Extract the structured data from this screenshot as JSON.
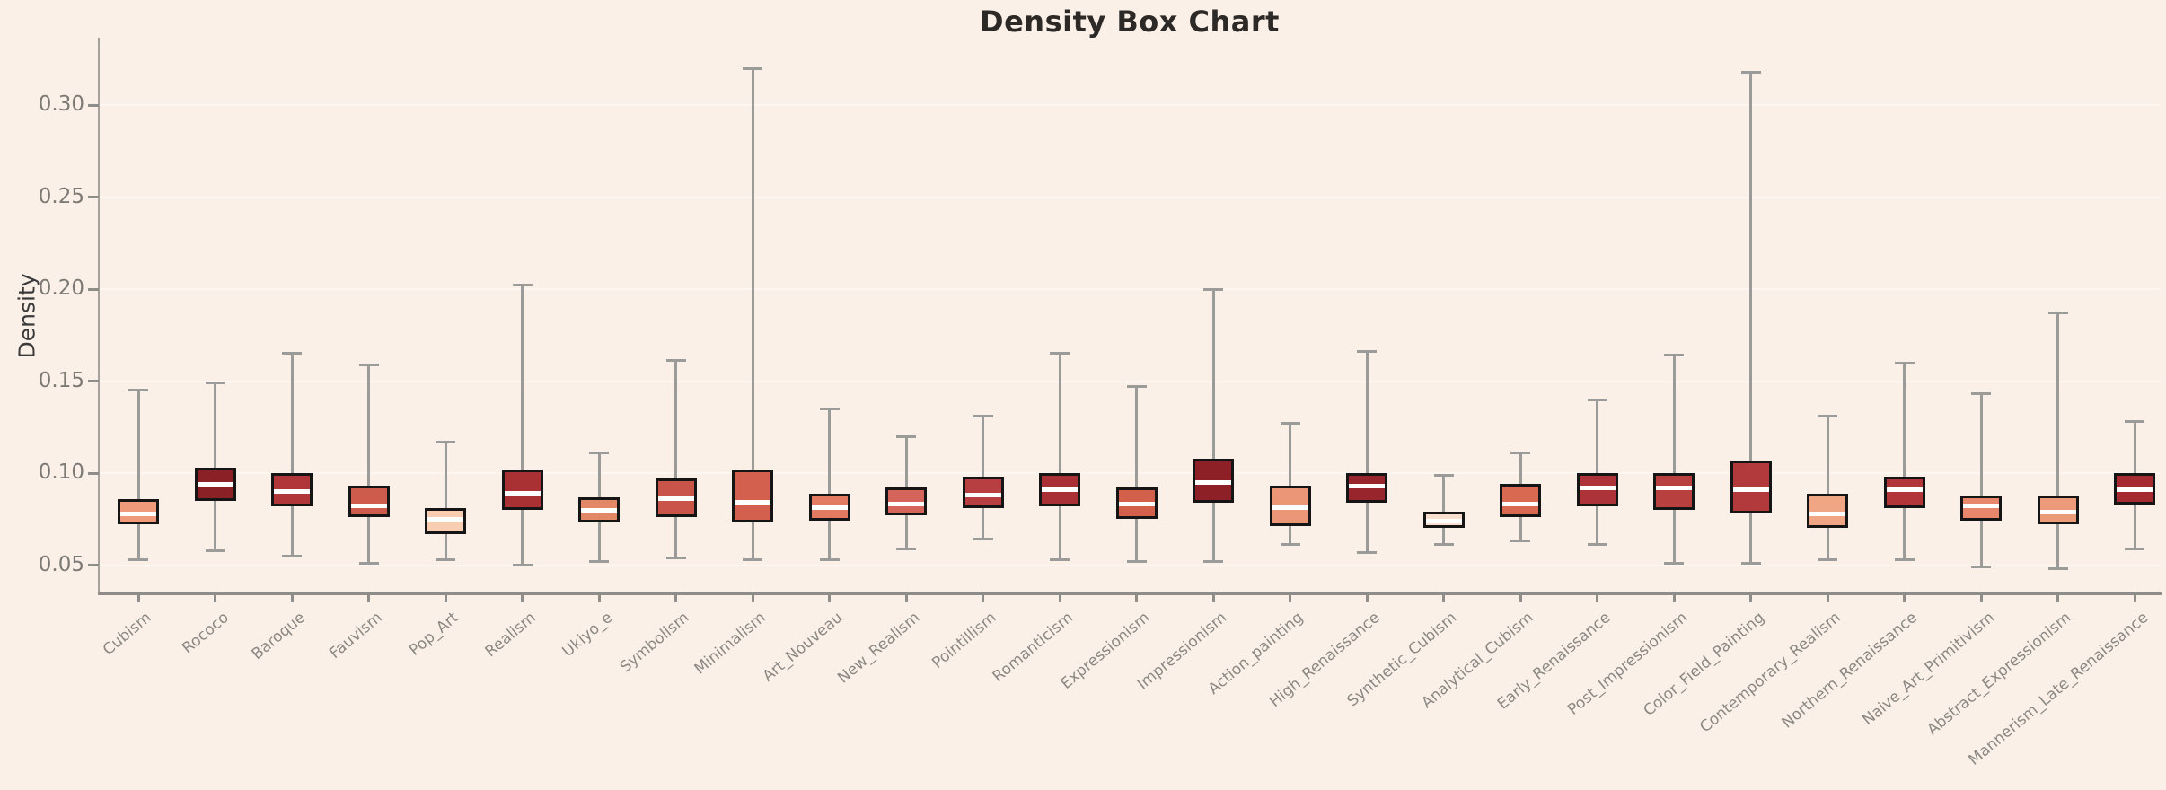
{
  "figure": {
    "title": "Density Box Chart",
    "background": "#FBF0E8"
  },
  "chart_data": {
    "type": "box",
    "title": "Density Box Chart",
    "xlabel": "",
    "ylabel": "Density",
    "ylim": [
      0.034,
      0.336
    ],
    "yticks": [
      0.05,
      0.1,
      0.15,
      0.2,
      0.25,
      0.3
    ],
    "grid": "horizontal",
    "legend": "none",
    "colors": {
      "background": "#FBF0E8",
      "gridline": "#FEF7F1",
      "axis": "#8F8D8A",
      "tick_label": "#8B8884",
      "title_color": "#2D2926",
      "box_border": "#151515",
      "median": "#FFFFFF",
      "whisker": "#9B9B99"
    },
    "categories": [
      "Cubism",
      "Rococo",
      "Baroque",
      "Fauvism",
      "Pop_Art",
      "Realism",
      "Ukiyo_e",
      "Symbolism",
      "Minimalism",
      "Art_Nouveau",
      "New_Realism",
      "Pointillism",
      "Romanticism",
      "Expressionism",
      "Impressionism",
      "Action_painting",
      "High_Renaissance",
      "Synthetic_Cubism",
      "Analytical_Cubism",
      "Early_Renaissance",
      "Post_Impressionism",
      "Color_Field_Painting",
      "Contemporary_Realism",
      "Northern_Renaissance",
      "Naive_Art_Primitivism",
      "Abstract_Expressionism",
      "Mannerism_Late_Renaissance"
    ],
    "series": [
      {
        "name": "Cubism",
        "whisker_low": 0.053,
        "q1": 0.072,
        "median": 0.078,
        "q3": 0.086,
        "whisker_high": 0.145,
        "color": "#EE9A7B"
      },
      {
        "name": "Rococo",
        "whisker_low": 0.058,
        "q1": 0.085,
        "median": 0.094,
        "q3": 0.103,
        "whisker_high": 0.149,
        "color": "#8A2126"
      },
      {
        "name": "Baroque",
        "whisker_low": 0.055,
        "q1": 0.082,
        "median": 0.09,
        "q3": 0.1,
        "whisker_high": 0.165,
        "color": "#B03639"
      },
      {
        "name": "Fauvism",
        "whisker_low": 0.051,
        "q1": 0.076,
        "median": 0.082,
        "q3": 0.093,
        "whisker_high": 0.159,
        "color": "#CE5C4C"
      },
      {
        "name": "Pop_Art",
        "whisker_low": 0.053,
        "q1": 0.067,
        "median": 0.075,
        "q3": 0.081,
        "whisker_high": 0.117,
        "color": "#F8CDB2"
      },
      {
        "name": "Realism",
        "whisker_low": 0.05,
        "q1": 0.08,
        "median": 0.089,
        "q3": 0.102,
        "whisker_high": 0.202,
        "color": "#A93134"
      },
      {
        "name": "Ukiyo_e",
        "whisker_low": 0.052,
        "q1": 0.073,
        "median": 0.08,
        "q3": 0.087,
        "whisker_high": 0.111,
        "color": "#E28866"
      },
      {
        "name": "Symbolism",
        "whisker_low": 0.054,
        "q1": 0.076,
        "median": 0.086,
        "q3": 0.097,
        "whisker_high": 0.161,
        "color": "#C95449"
      },
      {
        "name": "Minimalism",
        "whisker_low": 0.053,
        "q1": 0.073,
        "median": 0.084,
        "q3": 0.102,
        "whisker_high": 0.32,
        "color": "#D35F4E"
      },
      {
        "name": "Art_Nouveau",
        "whisker_low": 0.053,
        "q1": 0.074,
        "median": 0.081,
        "q3": 0.089,
        "whisker_high": 0.135,
        "color": "#E27B62"
      },
      {
        "name": "New_Realism",
        "whisker_low": 0.059,
        "q1": 0.077,
        "median": 0.083,
        "q3": 0.092,
        "whisker_high": 0.12,
        "color": "#D5655A"
      },
      {
        "name": "Pointillism",
        "whisker_low": 0.064,
        "q1": 0.081,
        "median": 0.088,
        "q3": 0.098,
        "whisker_high": 0.131,
        "color": "#B73E41"
      },
      {
        "name": "Romanticism",
        "whisker_low": 0.053,
        "q1": 0.082,
        "median": 0.091,
        "q3": 0.1,
        "whisker_high": 0.165,
        "color": "#A93135"
      },
      {
        "name": "Expressionism",
        "whisker_low": 0.052,
        "q1": 0.075,
        "median": 0.083,
        "q3": 0.092,
        "whisker_high": 0.147,
        "color": "#D2604B"
      },
      {
        "name": "Impressionism",
        "whisker_low": 0.052,
        "q1": 0.084,
        "median": 0.095,
        "q3": 0.108,
        "whisker_high": 0.2,
        "color": "#8C2026"
      },
      {
        "name": "Action_painting",
        "whisker_low": 0.061,
        "q1": 0.071,
        "median": 0.081,
        "q3": 0.093,
        "whisker_high": 0.127,
        "color": "#EC9678"
      },
      {
        "name": "High_Renaissance",
        "whisker_low": 0.057,
        "q1": 0.084,
        "median": 0.093,
        "q3": 0.1,
        "whisker_high": 0.166,
        "color": "#97252B"
      },
      {
        "name": "Synthetic_Cubism",
        "whisker_low": 0.061,
        "q1": 0.07,
        "median": 0.074,
        "q3": 0.079,
        "whisker_high": 0.099,
        "color": "#FBDFCE"
      },
      {
        "name": "Analytical_Cubism",
        "whisker_low": 0.063,
        "q1": 0.076,
        "median": 0.083,
        "q3": 0.094,
        "whisker_high": 0.111,
        "color": "#D96951"
      },
      {
        "name": "Early_Renaissance",
        "whisker_low": 0.061,
        "q1": 0.082,
        "median": 0.092,
        "q3": 0.1,
        "whisker_high": 0.14,
        "color": "#AE3338"
      },
      {
        "name": "Post_Impressionism",
        "whisker_low": 0.051,
        "q1": 0.08,
        "median": 0.092,
        "q3": 0.1,
        "whisker_high": 0.164,
        "color": "#B8403F"
      },
      {
        "name": "Color_Field_Painting",
        "whisker_low": 0.051,
        "q1": 0.078,
        "median": 0.091,
        "q3": 0.107,
        "whisker_high": 0.318,
        "color": "#B23A3C"
      },
      {
        "name": "Contemporary_Realism",
        "whisker_low": 0.053,
        "q1": 0.07,
        "median": 0.078,
        "q3": 0.089,
        "whisker_high": 0.131,
        "color": "#F0A585"
      },
      {
        "name": "Northern_Renaissance",
        "whisker_low": 0.053,
        "q1": 0.081,
        "median": 0.091,
        "q3": 0.098,
        "whisker_high": 0.16,
        "color": "#B23639"
      },
      {
        "name": "Naive_Art_Primitivism",
        "whisker_low": 0.049,
        "q1": 0.074,
        "median": 0.082,
        "q3": 0.088,
        "whisker_high": 0.143,
        "color": "#E8876B"
      },
      {
        "name": "Abstract_Expressionism",
        "whisker_low": 0.048,
        "q1": 0.072,
        "median": 0.079,
        "q3": 0.088,
        "whisker_high": 0.187,
        "color": "#ED9A7A"
      },
      {
        "name": "Mannerism_Late_Renaissance",
        "whisker_low": 0.059,
        "q1": 0.083,
        "median": 0.091,
        "q3": 0.1,
        "whisker_high": 0.128,
        "color": "#A52B31"
      }
    ]
  }
}
